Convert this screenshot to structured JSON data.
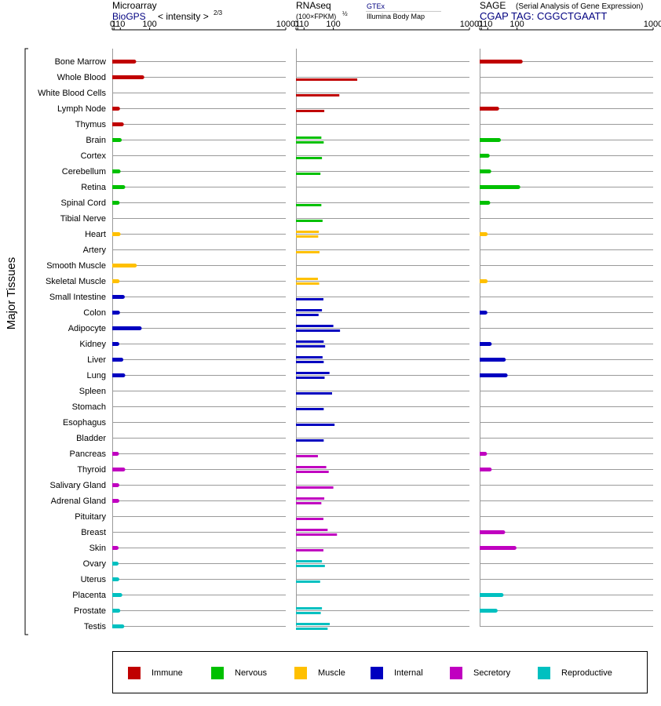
{
  "chart_data": {
    "type": "bar",
    "orientation": "horizontal",
    "y_axis_label": "Major Tissues",
    "categories": [
      "Bone Marrow",
      "Whole Blood",
      "White Blood Cells",
      "Lymph Node",
      "Thymus",
      "Brain",
      "Cortex",
      "Cerebellum",
      "Retina",
      "Spinal Cord",
      "Tibial Nerve",
      "Heart",
      "Artery",
      "Smooth Muscle",
      "Skeletal Muscle",
      "Small Intestine",
      "Colon",
      "Adipocyte",
      "Kidney",
      "Liver",
      "Lung",
      "Spleen",
      "Stomach",
      "Esophagus",
      "Bladder",
      "Pancreas",
      "Thyroid",
      "Salivary Gland",
      "Adrenal Gland",
      "Pituitary",
      "Breast",
      "Skin",
      "Ovary",
      "Uterus",
      "Placenta",
      "Prostate",
      "Testis"
    ],
    "groups": [
      "Immune",
      "Immune",
      "Immune",
      "Immune",
      "Immune",
      "Nervous",
      "Nervous",
      "Nervous",
      "Nervous",
      "Nervous",
      "Nervous",
      "Muscle",
      "Muscle",
      "Muscle",
      "Muscle",
      "Internal",
      "Internal",
      "Internal",
      "Internal",
      "Internal",
      "Internal",
      "Internal",
      "Internal",
      "Internal",
      "Internal",
      "Secretory",
      "Secretory",
      "Secretory",
      "Secretory",
      "Secretory",
      "Secretory",
      "Secretory",
      "Reproductive",
      "Reproductive",
      "Reproductive",
      "Reproductive",
      "Reproductive"
    ],
    "group_colors": {
      "Immune": "#c00000",
      "Nervous": "#00c000",
      "Muscle": "#ffc000",
      "Internal": "#0000c0",
      "Secretory": "#c000c0",
      "Reproductive": "#00c0c0"
    },
    "legend": [
      "Immune",
      "Nervous",
      "Muscle",
      "Internal",
      "Secretory",
      "Reproductive"
    ],
    "scale": "power 2/3 (intensity^(2/3))",
    "tick_values": [
      0,
      1,
      10,
      100,
      1000
    ],
    "tick_labels": [
      "0",
      "1",
      "10",
      "100",
      "1000"
    ],
    "xlim": [
      0,
      1000
    ],
    "panels": [
      {
        "title": "Microarray",
        "subtitle": "BioGPS",
        "scale_note": "< intensity >",
        "scale_exponent": "2/3",
        "sub_values": [
          [
            45
          ],
          [
            72
          ],
          [],
          [
            6
          ],
          [
            13
          ],
          [
            9
          ],
          [],
          [
            7
          ],
          [
            16
          ],
          [
            5.5
          ],
          [],
          [
            7
          ],
          [],
          [
            47
          ],
          [
            5.5
          ],
          [
            15
          ],
          [
            6
          ],
          [
            63
          ],
          [
            5
          ],
          [
            12
          ],
          [
            16
          ],
          [],
          [],
          [],
          [],
          [
            4.5
          ],
          [
            16
          ],
          [
            5
          ],
          [
            5
          ],
          [],
          [],
          [
            4
          ],
          [
            4
          ],
          [
            5
          ],
          [
            10
          ],
          [
            6.5
          ],
          [
            14
          ]
        ]
      },
      {
        "title": "RNAseq",
        "subtitle": "(100×FPKM)",
        "subtitle_exponent": "½",
        "source_top": "GTEx",
        "source_bottom": "Illumina Body Map",
        "sub_values": [
          [],
          [
            210
          ],
          [
            125
          ],
          [
            66
          ],
          [],
          [
            56,
            64
          ],
          [
            58
          ],
          [
            53
          ],
          [],
          [
            56
          ],
          [
            60
          ],
          [
            48,
            46
          ],
          [
            50
          ],
          [],
          [
            45,
            49
          ],
          [
            63
          ],
          [
            58,
            47
          ],
          [
            100,
            128
          ],
          [
            64,
            69
          ],
          [
            60,
            64
          ],
          [
            85,
            67
          ],
          [
            95
          ],
          [
            64
          ],
          [
            105
          ],
          [
            64
          ],
          [
            45
          ],
          [
            73,
            82
          ],
          [
            100
          ],
          [
            66,
            56
          ],
          [
            63
          ],
          [
            78,
            115
          ],
          [
            63
          ],
          [
            58,
            68
          ],
          [
            52
          ],
          [],
          [
            58,
            54
          ],
          [
            86,
            78
          ]
        ]
      },
      {
        "title": "SAGE",
        "subtitle_note": "(Serial Analysis of Gene Expression)",
        "tag": "CGAP TAG: CGGCTGAATT",
        "sub_values": [
          [
            115
          ],
          [],
          [],
          [
            32
          ],
          [],
          [
            37
          ],
          [
            10
          ],
          [
            13
          ],
          [
            105
          ],
          [
            11
          ],
          [],
          [
            6.5
          ],
          [],
          [],
          [
            6.5
          ],
          [],
          [
            6
          ],
          [],
          [
            14
          ],
          [
            52
          ],
          [
            58
          ],
          [],
          [],
          [],
          [],
          [
            5.5
          ],
          [
            14
          ],
          [],
          [],
          [],
          [
            50
          ],
          [
            90
          ],
          [],
          [],
          [
            45
          ],
          [
            28
          ],
          []
        ]
      }
    ]
  }
}
